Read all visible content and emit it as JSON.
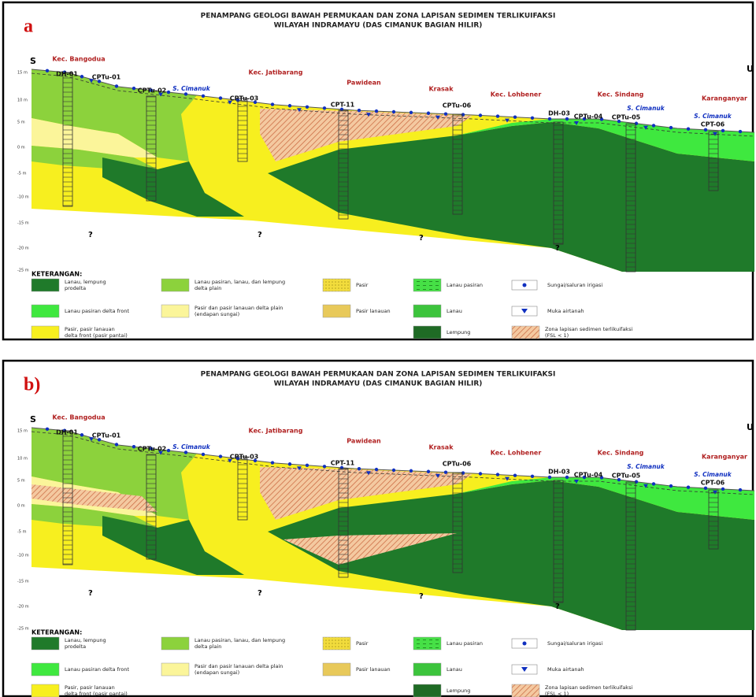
{
  "panels": [
    {
      "label": "a",
      "title": [
        "PENAMPANG GEOLOGI BAWAH PERMUKAAN DAN ZONA LAPISAN SEDIMEN TERLIKUIFAKSI",
        "WILAYAH INDRAMAYU (DAS CIMANUK BAGIAN HILIR)"
      ],
      "direction": [
        "S",
        "U"
      ],
      "depth_labels": [
        "15 m",
        "10 m",
        "5 m",
        "0 m",
        "-5 m",
        "-10 m",
        "-15 m",
        "-20 m",
        "-25 m"
      ],
      "places": [
        "Kec. Bangodua",
        "Kec. Jatibarang",
        "Pawidean",
        "Krasak",
        "Kec. Lohbener",
        "Kec. Sindang",
        "Karanganyar"
      ],
      "boreholes": [
        "DH-01",
        "CPTu-01",
        "CPTu-02",
        "CPTu-03",
        "CPT-11",
        "CPTu-06",
        "DH-03",
        "CPTu-04",
        "CPTu-05",
        "CPT-06"
      ],
      "rivers": [
        "S. Cimanuk",
        "S. Cimanuk",
        "S. Cimanuk"
      ],
      "unknown": [
        "?",
        "?",
        "?",
        "?"
      ],
      "legend_title": "KETERANGAN:",
      "legend": [
        [
          "Lanau, lempung",
          "prodelta"
        ],
        [
          "Lanau pasiran delta front"
        ],
        [
          "Pasir, pasir lanauan",
          "delta front (pasir pantai)"
        ],
        [
          "Lanau pasiran, lanau, dan lempung",
          "delta plain"
        ],
        [
          "Pasir dan pasir lanauan delta plain",
          "(endapan sungai)"
        ],
        [
          "Pasir"
        ],
        [
          "Pasir lanauan"
        ],
        [
          "Lanau pasiran"
        ],
        [
          "Lanau"
        ],
        [
          "Lempung"
        ],
        [
          "Sungai/saluran irigasi"
        ],
        [
          "Muka airtanah"
        ],
        [
          "Zona lapisan sedimen terlikuifaksi",
          "(FSL < 1)"
        ]
      ]
    },
    {
      "label": "b)",
      "title": [
        "PENAMPANG GEOLOGI BAWAH PERMUKAAN DAN ZONA LAPISAN SEDIMEN TERLIKUIFAKSI",
        "WILAYAH INDRAMAYU (DAS CIMANUK BAGIAN HILIR)"
      ],
      "direction": [
        "S",
        "U"
      ],
      "depth_labels": [
        "15 m",
        "10 m",
        "5 m",
        "0 m",
        "-5 m",
        "-10 m",
        "-15 m",
        "-20 m",
        "-25 m"
      ],
      "places": [
        "Kec. Bangodua",
        "Kec. Jatibarang",
        "Pawidean",
        "Krasak",
        "Kec. Lohbener",
        "Kec. Sindang",
        "Karanganyar"
      ],
      "boreholes": [
        "DH-01",
        "CPTu-01",
        "CPTu-02",
        "CPTu-03",
        "CPT-11",
        "CPTu-06",
        "DH-03",
        "CPTu-04",
        "CPTu-05",
        "CPT-06"
      ],
      "rivers": [
        "S. Cimanuk",
        "S. Cimanuk",
        "S. Cimanuk"
      ],
      "unknown": [
        "?",
        "?",
        "?",
        "?"
      ],
      "legend_title": "KETERANGAN:",
      "legend": [
        [
          "Lanau, lempung",
          "prodelta"
        ],
        [
          "Lanau pasiran delta front"
        ],
        [
          "Pasir, pasir lanauan",
          "delta front (pasir pantai)"
        ],
        [
          "Lanau pasiran, lanau, dan lempung",
          "delta plain"
        ],
        [
          "Pasir dan pasir lanauan delta plain",
          "(endapan sungai)"
        ],
        [
          "Pasir"
        ],
        [
          "Pasir lanauan"
        ],
        [
          "Lanau pasiran"
        ],
        [
          "Lanau"
        ],
        [
          "Lempung"
        ],
        [
          "Sungai/saluran irigasi"
        ],
        [
          "Muka airtanah"
        ],
        [
          "Zona lapisan sedimen terlikuifaksi",
          "(FSL < 1)"
        ]
      ]
    }
  ]
}
